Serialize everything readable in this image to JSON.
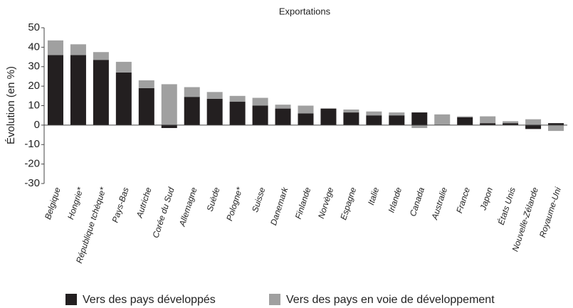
{
  "chart_data": {
    "type": "stacked_bar",
    "title": "Exportations",
    "y_label": "Évolution (en %)",
    "categories": [
      "Belgique",
      "Hongrie*",
      "République tchèque*",
      "Pays-Bas",
      "Autriche",
      "Corée du Sud",
      "Allemagne",
      "Suède",
      "Pologne*",
      "Suisse",
      "Danemark",
      "Finlande",
      "Norvège",
      "Espagne",
      "Italie",
      "Irlande",
      "Canada",
      "Australie",
      "France",
      "Japon",
      "États Unis",
      "Nouvelle-Zélande",
      "Royaume-Uni"
    ],
    "series": [
      {
        "name": "Vers des pays développés",
        "color": "#231f20",
        "values": [
          36,
          36,
          33.5,
          27,
          19,
          -1.5,
          14.5,
          13.5,
          12,
          10,
          8.5,
          6,
          8.5,
          6.5,
          5,
          5,
          6.5,
          0,
          4,
          1,
          1,
          -2,
          1
        ]
      },
      {
        "name": "Vers des pays en voie de développement",
        "color": "#a0a0a0",
        "values": [
          7.5,
          5.5,
          4,
          5.5,
          4,
          21,
          5,
          3.5,
          3,
          4,
          2,
          4,
          0,
          1.5,
          2,
          1.5,
          -1.5,
          5.5,
          0.5,
          3.5,
          1,
          3,
          -3
        ]
      }
    ],
    "ylim": [
      -30,
      50
    ],
    "yticks": [
      -30,
      -20,
      -10,
      0,
      10,
      20,
      30,
      40,
      50
    ]
  }
}
